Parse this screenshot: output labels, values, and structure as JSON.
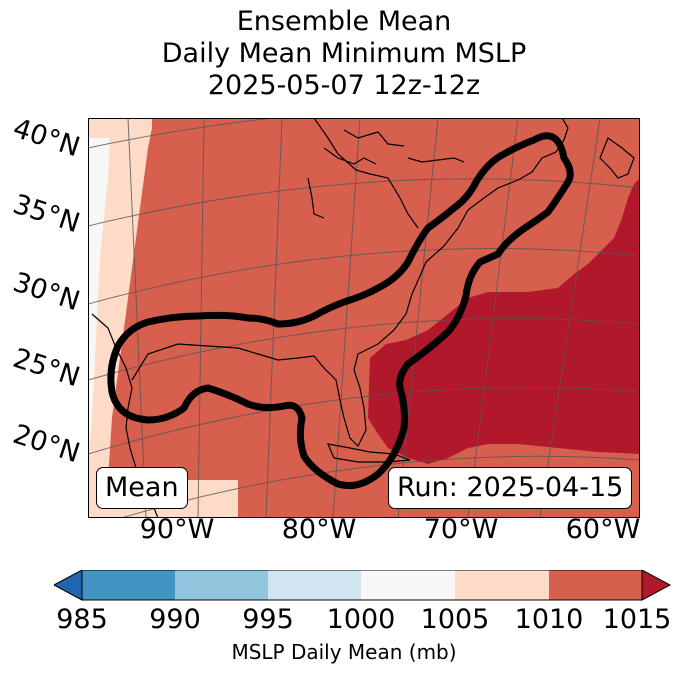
{
  "title": {
    "line1": "Ensemble Mean",
    "line2": "Daily Mean Minimum MSLP",
    "line3": "2025-05-07 12z-12z"
  },
  "map": {
    "lat_labels": [
      "40°N",
      "35°N",
      "30°N",
      "25°N",
      "20°N"
    ],
    "lon_labels": [
      "90°W",
      "80°W",
      "70°W",
      "60°W"
    ],
    "left_box": "Mean",
    "right_box": "Run: 2025-04-15",
    "contour_color": "#000000"
  },
  "colorbar": {
    "label": "MSLP Daily Mean (mb)",
    "ticks": [
      "985",
      "990",
      "995",
      "1000",
      "1005",
      "1010",
      "1015"
    ],
    "colors": {
      "under": "#2166ac",
      "c985_990": "#4393c3",
      "c990_995": "#92c5de",
      "c995_1000": "#d1e5f0",
      "c1000_1005": "#f7f7f7",
      "c1005_1010": "#fddbc7",
      "c1010_1015": "#d6604d",
      "over": "#b2182b"
    }
  }
}
